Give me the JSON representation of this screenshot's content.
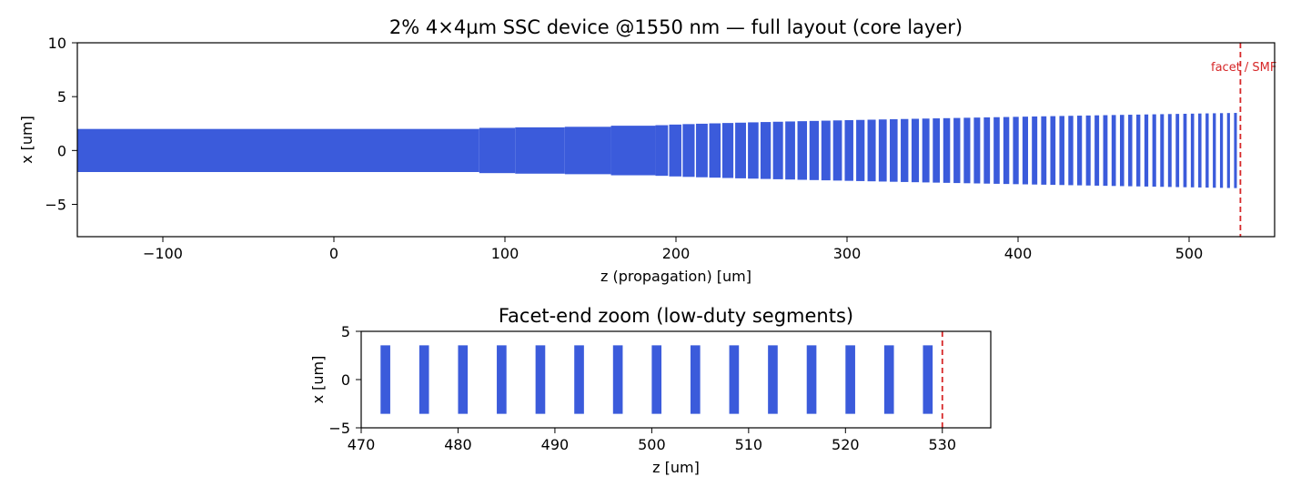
{
  "chart_data": [
    {
      "type": "bar",
      "title": "2% 4×4µm SSC device @1550 nm — full layout (core layer)",
      "xlabel": "z (propagation) [um]",
      "ylabel": "x [um]",
      "xlim": [
        -150,
        550
      ],
      "ylim": [
        -8,
        10
      ],
      "xticks": [
        -100,
        0,
        100,
        200,
        300,
        400,
        500
      ],
      "xtick_labels": [
        "−100",
        "0",
        "100",
        "200",
        "300",
        "400",
        "500"
      ],
      "yticks": [
        -5,
        0,
        5,
        10
      ],
      "ytick_labels": [
        "−5",
        "0",
        "5",
        "10"
      ],
      "bar_color": "#3b5bdb",
      "annotation_color": "#d62728",
      "annotation_text": "facet / SMF",
      "facet_z": 530,
      "continuous_core": {
        "z_start": -150,
        "z_end": 188,
        "steps": [
          {
            "z0": -150,
            "z1": 85,
            "half_width": 2.0
          },
          {
            "z0": 85,
            "z1": 106,
            "half_width": 2.1
          },
          {
            "z0": 106,
            "z1": 135,
            "half_width": 2.15
          },
          {
            "z0": 135,
            "z1": 162,
            "half_width": 2.2
          },
          {
            "z0": 162,
            "z1": 188,
            "half_width": 2.3
          }
        ]
      },
      "segments": {
        "z_start": 188,
        "z_end": 530,
        "half_width_start": 2.35,
        "half_width_end": 3.5,
        "period_start": 8.0,
        "period_end": 4.0,
        "duty_start": 0.92,
        "duty_end": 0.4
      }
    },
    {
      "type": "bar",
      "title": "Facet-end zoom (low-duty segments)",
      "xlabel": "z [um]",
      "ylabel": "x [um]",
      "xlim": [
        470,
        535
      ],
      "ylim": [
        -5,
        5
      ],
      "xticks": [
        470,
        480,
        490,
        500,
        510,
        520,
        530
      ],
      "xtick_labels": [
        "470",
        "480",
        "490",
        "500",
        "510",
        "520",
        "530"
      ],
      "yticks": [
        -5,
        0,
        5
      ],
      "ytick_labels": [
        "−5",
        "0",
        "5"
      ],
      "bar_color": "#3b5bdb",
      "facet_z": 530,
      "segment_width": 1.0,
      "segment_half_width": 3.55,
      "segments_z": [
        472,
        476,
        480,
        484,
        488,
        492,
        496,
        500,
        504,
        508,
        512,
        516,
        520,
        524,
        528
      ]
    }
  ]
}
